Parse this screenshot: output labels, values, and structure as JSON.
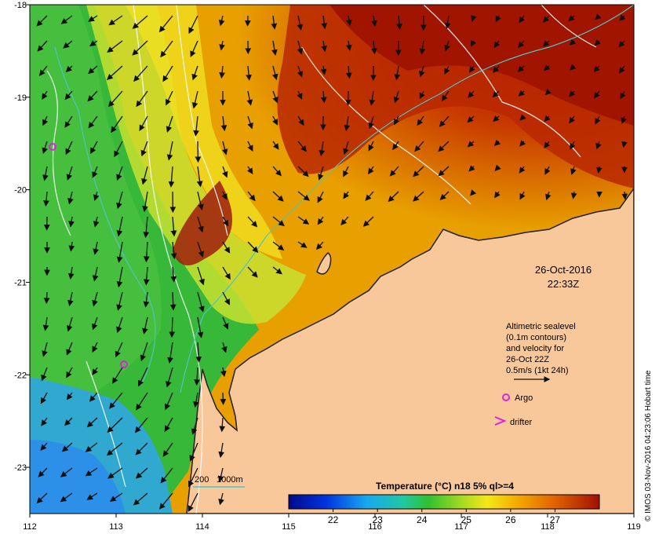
{
  "map": {
    "lon_range": [
      112,
      119
    ],
    "lat_range": [
      -23.5,
      -18
    ],
    "lon_ticks": [
      "112",
      "113",
      "114",
      "115",
      "116",
      "117",
      "118",
      "119"
    ],
    "lat_ticks": [
      "-18",
      "-19",
      "-20",
      "-21",
      "-22",
      "-23"
    ],
    "land_color": "#f9c89a",
    "coast_color": "#1f1f1f"
  },
  "datetime": {
    "date": "26-Oct-2016",
    "time": "22:33Z"
  },
  "legend": {
    "line1": "Altimetric sealevel",
    "line2": "(0.1m contours)",
    "line3": "and velocity for",
    "line4": "26-Oct 22Z",
    "scale": "0.5m/s (1kt 24h)",
    "argo": "Argo",
    "drifter": "drifter",
    "argo_color": "#e020e0"
  },
  "isobaths": {
    "label_200": "200",
    "label_1000": "1000m",
    "color": "#4fc3c3"
  },
  "colorbar": {
    "title": "Temperature (°C) n18 5% ql>=4",
    "ticks": [
      "22",
      "23",
      "24",
      "25",
      "26",
      "27"
    ],
    "range": [
      21,
      28
    ]
  },
  "side_label": "© IMOS 03-Nov-2016 04:23:06 Hobart time"
}
